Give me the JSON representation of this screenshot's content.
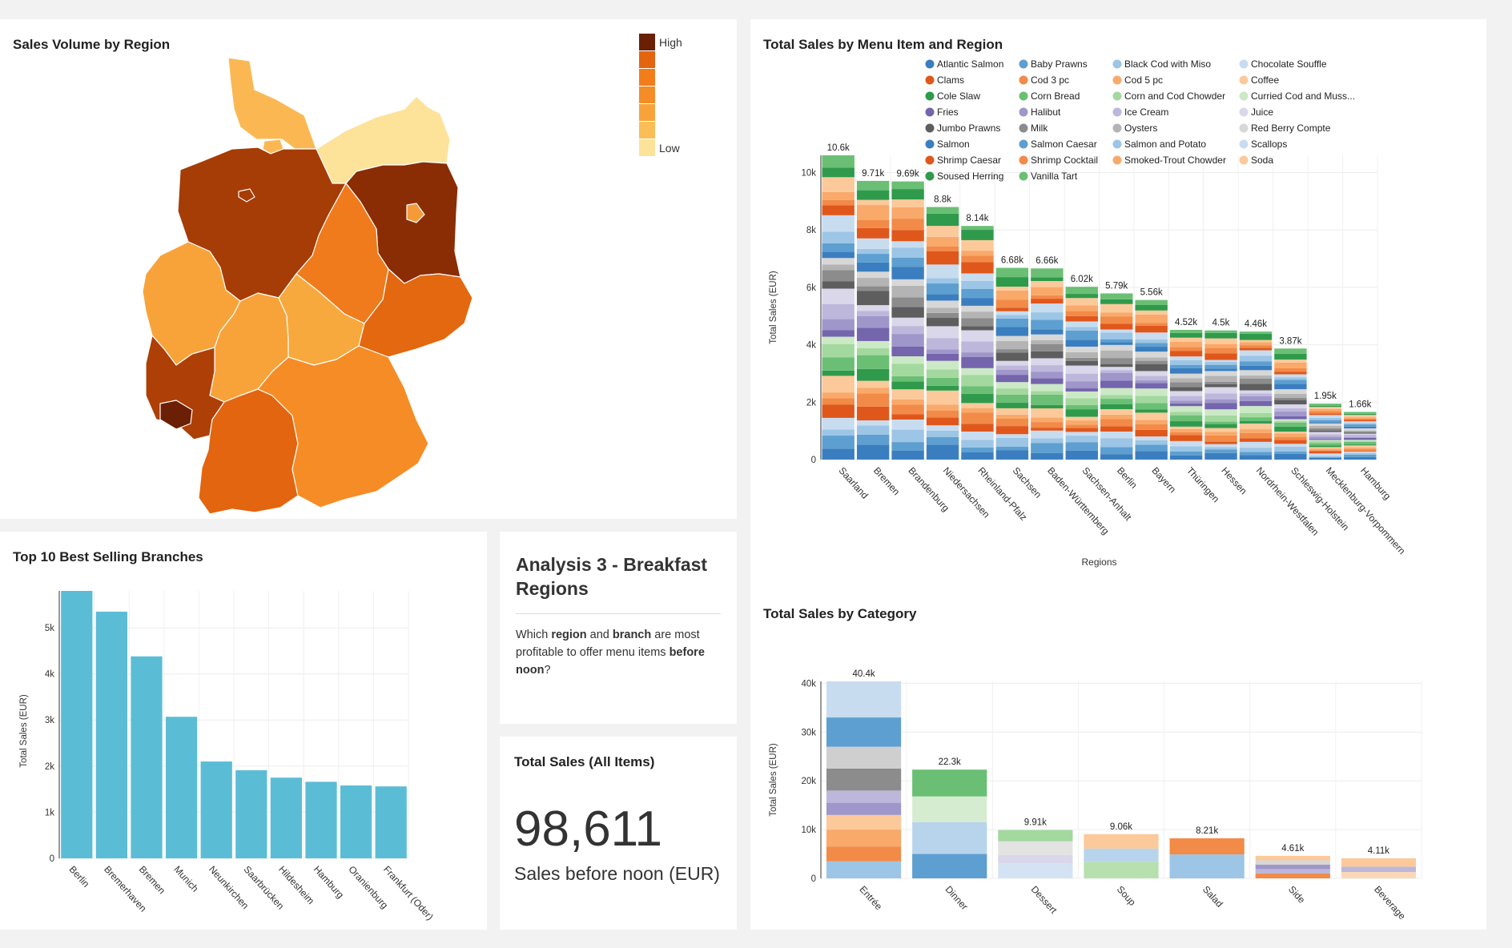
{
  "map_panel": {
    "title": "Sales Volume by Region",
    "legend": {
      "high_label": "High",
      "low_label": "Low",
      "colors": [
        "#6b1f05",
        "#e3650f",
        "#f37d1a",
        "#f58c25",
        "#f8a33a",
        "#fbbd55",
        "#fde39a"
      ]
    },
    "region_colors": {
      "Schleswig-Holstein": "#fbb852",
      "Hamburg": "#fbb852",
      "Mecklenburg-Vorpommern": "#fde39a",
      "Niedersachsen": "#a63c06",
      "Bremen": "#a63c06",
      "Brandenburg": "#8a2c04",
      "Berlin": "#f59a39",
      "Sachsen-Anhalt": "#ef7b1c",
      "Sachsen": "#e36810",
      "Nordrhein-Westfalen": "#f8a33a",
      "Hessen": "#f8a33a",
      "Thüringen": "#f8a93d",
      "Rheinland-Pfalz": "#ad3f07",
      "Saarland": "#6b1f05",
      "Baden-Württemberg": "#e3650f",
      "Bayern": "#f58c25"
    }
  },
  "menu_region_panel": {
    "title": "Total Sales by Menu Item and Region"
  },
  "category_panel": {
    "title": "Total Sales by Category"
  },
  "branches_panel": {
    "title": "Top 10 Best Selling Branches"
  },
  "markdown": {
    "title": "Analysis 3 - Breakfast Regions",
    "q_prefix": "Which ",
    "q_region": "region",
    "q_and": " and ",
    "q_branch": "branch",
    "q_mid": " are most profitable to offer menu items ",
    "q_before": "before",
    "q_noon": "noon",
    "q_end": "?"
  },
  "kpi": {
    "title": "Total Sales (All Items)",
    "value": "98,611",
    "subtitle": "Sales before noon (EUR)"
  },
  "chart_data": [
    {
      "type": "bar",
      "title": "Total Sales by Menu Item and Region",
      "stacked": true,
      "xlabel": "Regions",
      "ylabel": "Total Sales (EUR)",
      "ylim": [
        0,
        10600
      ],
      "yticks": [
        0,
        2000,
        4000,
        6000,
        8000,
        10000
      ],
      "ytick_labels": [
        "0",
        "2k",
        "4k",
        "6k",
        "8k",
        "10k"
      ],
      "legend": "top",
      "grid": true,
      "categories": [
        "Saarland",
        "Bremen",
        "Brandenburg",
        "Niedersachsen",
        "Rheinland-Pfalz",
        "Sachsen",
        "Baden-Württemberg",
        "Sachsen-Anhalt",
        "Berlin",
        "Bayern",
        "Thüringen",
        "Hessen",
        "Nordrhein-Westfalen",
        "Schleswig-Holstein",
        "Mecklenburg-Vorpommern",
        "Hamburg"
      ],
      "totals": [
        10600,
        9710,
        9690,
        8800,
        8140,
        6680,
        6660,
        6020,
        5790,
        5560,
        4520,
        4500,
        4460,
        3870,
        1950,
        1660
      ],
      "total_labels": [
        "10.6k",
        "9.71k",
        "9.69k",
        "8.8k",
        "8.14k",
        "6.68k",
        "6.66k",
        "6.02k",
        "5.79k",
        "5.56k",
        "4.52k",
        "4.5k",
        "4.46k",
        "3.87k",
        "1.95k",
        "1.66k"
      ],
      "legend_items": [
        {
          "name": "Atlantic Salmon",
          "color": "#3b7ebf"
        },
        {
          "name": "Baby Prawns",
          "color": "#5d9fd0"
        },
        {
          "name": "Black Cod with Miso",
          "color": "#9cc5e6"
        },
        {
          "name": "Chocolate Souffle",
          "color": "#c8dcf0"
        },
        {
          "name": "Clams",
          "color": "#e0571c"
        },
        {
          "name": "Cod 3 pc",
          "color": "#f28a48"
        },
        {
          "name": "Cod 5 pc",
          "color": "#f9a96a"
        },
        {
          "name": "Coffee",
          "color": "#fcc99a"
        },
        {
          "name": "Cole Slaw",
          "color": "#2f9a4c"
        },
        {
          "name": "Corn Bread",
          "color": "#6abf74"
        },
        {
          "name": "Corn and Cod Chowder",
          "color": "#a3d89e"
        },
        {
          "name": "Curried Cod and Muss...",
          "color": "#cbe9c5"
        },
        {
          "name": "Fries",
          "color": "#7465ad"
        },
        {
          "name": "Halibut",
          "color": "#9f96c9"
        },
        {
          "name": "Ice Cream",
          "color": "#bdb7dc"
        },
        {
          "name": "Juice",
          "color": "#dad7ea"
        },
        {
          "name": "Jumbo Prawns",
          "color": "#5e5e5e"
        },
        {
          "name": "Milk",
          "color": "#8c8c8c"
        },
        {
          "name": "Oysters",
          "color": "#b4b4b4"
        },
        {
          "name": "Red Berry Compte",
          "color": "#d7d7d7"
        },
        {
          "name": "Salmon",
          "color": "#3b7ebf"
        },
        {
          "name": "Salmon Caesar",
          "color": "#5d9fd0"
        },
        {
          "name": "Salmon and Potato",
          "color": "#9cc5e6"
        },
        {
          "name": "Scallops",
          "color": "#c8dcf0"
        },
        {
          "name": "Shrimp Caesar",
          "color": "#e0571c"
        },
        {
          "name": "Shrimp Cocktail",
          "color": "#f28a48"
        },
        {
          "name": "Smoked-Trout Chowder",
          "color": "#f9a96a"
        },
        {
          "name": "Soda",
          "color": "#fcc99a"
        },
        {
          "name": "Soused Herring",
          "color": "#2f9a4c"
        },
        {
          "name": "Vanilla Tart",
          "color": "#6abf74"
        }
      ]
    },
    {
      "type": "bar",
      "title": "Total Sales by Category",
      "stacked": true,
      "ylabel": "Total Sales (EUR)",
      "ylim": [
        0,
        40400
      ],
      "yticks": [
        0,
        10000,
        20000,
        30000,
        40000
      ],
      "ytick_labels": [
        "0",
        "10k",
        "20k",
        "30k",
        "40k"
      ],
      "grid": true,
      "categories": [
        "Entrée",
        "Dinner",
        "Dessert",
        "Soup",
        "Salad",
        "Side",
        "Beverage"
      ],
      "totals": [
        40400,
        22300,
        9910,
        9060,
        8210,
        4610,
        4110
      ],
      "total_labels": [
        "40.4k",
        "22.3k",
        "9.91k",
        "9.06k",
        "8.21k",
        "4.61k",
        "4.11k"
      ],
      "segments": [
        [
          {
            "v": 3500,
            "c": "#9cc5e6"
          },
          {
            "v": 3000,
            "c": "#f28a48"
          },
          {
            "v": 3500,
            "c": "#f9a96a"
          },
          {
            "v": 3000,
            "c": "#fcc99a"
          },
          {
            "v": 2500,
            "c": "#9f96c9"
          },
          {
            "v": 2500,
            "c": "#bdb7dc"
          },
          {
            "v": 4500,
            "c": "#8c8c8c"
          },
          {
            "v": 4500,
            "c": "#cfcfcf"
          },
          {
            "v": 6000,
            "c": "#5d9fd0"
          },
          {
            "v": 7400,
            "c": "#c8dcf0"
          }
        ],
        [
          {
            "v": 5000,
            "c": "#5d9fd0"
          },
          {
            "v": 6500,
            "c": "#b7d4ec"
          },
          {
            "v": 5300,
            "c": "#d6ecd0"
          },
          {
            "v": 5500,
            "c": "#6abf74"
          }
        ],
        [
          {
            "v": 3000,
            "c": "#d4e3f3"
          },
          {
            "v": 1800,
            "c": "#dad7ea"
          },
          {
            "v": 2800,
            "c": "#e3e3e3"
          },
          {
            "v": 2310,
            "c": "#a3d89e"
          }
        ],
        [
          {
            "v": 3400,
            "c": "#b6e0ae"
          },
          {
            "v": 2700,
            "c": "#b7d4ec"
          },
          {
            "v": 2960,
            "c": "#fcc99a"
          }
        ],
        [
          {
            "v": 4910,
            "c": "#9cc5e6"
          },
          {
            "v": 3300,
            "c": "#f28a48"
          }
        ],
        [
          {
            "v": 1000,
            "c": "#f28a48"
          },
          {
            "v": 900,
            "c": "#bdb7dc"
          },
          {
            "v": 900,
            "c": "#9f96c9"
          },
          {
            "v": 900,
            "c": "#d7d7d7"
          },
          {
            "v": 910,
            "c": "#fcc99a"
          }
        ],
        [
          {
            "v": 1300,
            "c": "#fbd8b5"
          },
          {
            "v": 1100,
            "c": "#bdb7dc"
          },
          {
            "v": 1710,
            "c": "#fcc99a"
          }
        ]
      ]
    },
    {
      "type": "bar",
      "title": "Top 10 Best Selling Branches",
      "ylabel": "Total Sales (EUR)",
      "ylim": [
        0,
        5800
      ],
      "yticks": [
        0,
        1000,
        2000,
        3000,
        4000,
        5000
      ],
      "ytick_labels": [
        "0",
        "1k",
        "2k",
        "3k",
        "4k",
        "5k"
      ],
      "grid": true,
      "color": "#5bbdd5",
      "categories": [
        "Berlin",
        "Bremerhaven",
        "Bremen",
        "Munich",
        "Neunkirchen",
        "Saarbrücken",
        "Hildesheim",
        "Hamburg",
        "Oranienburg",
        "Frankfurt (Oder)"
      ],
      "values": [
        5800,
        5350,
        4380,
        3070,
        2100,
        1910,
        1750,
        1660,
        1580,
        1560
      ]
    }
  ]
}
